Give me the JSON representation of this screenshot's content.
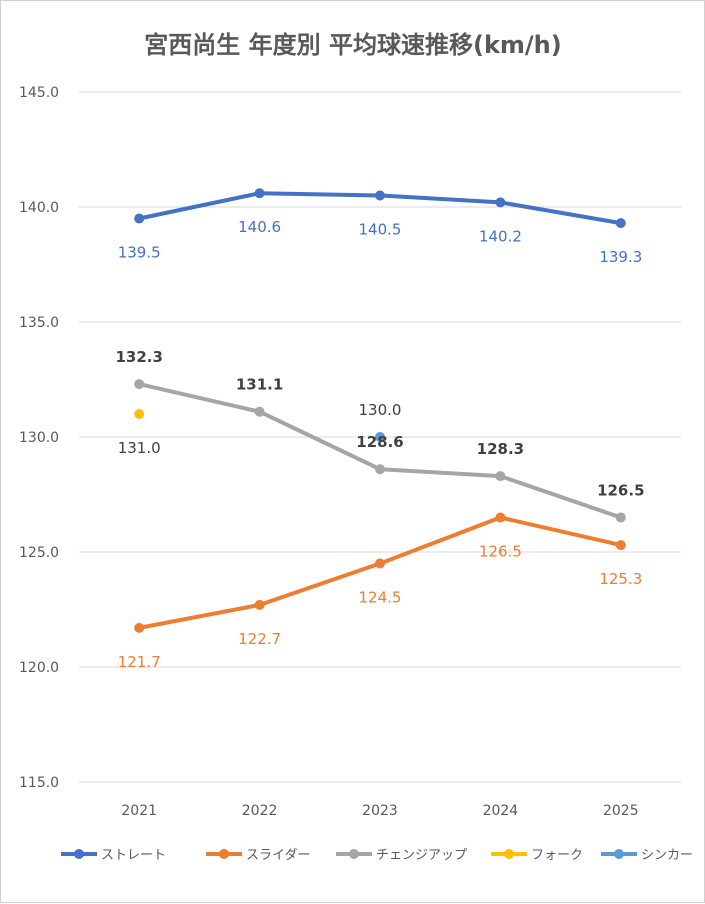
{
  "chart_data": {
    "type": "line",
    "title": "宮西尚生 年度別 平均球速推移(km/h)",
    "xlabel": "",
    "ylabel": "",
    "categories": [
      "2021",
      "2022",
      "2023",
      "2024",
      "2025"
    ],
    "ylim": [
      115.0,
      145.0
    ],
    "yticks": [
      "115.0",
      "120.0",
      "125.0",
      "130.0",
      "135.0",
      "140.0",
      "145.0"
    ],
    "grid": true,
    "legend": "bottom",
    "series": [
      {
        "name": "ストレート",
        "color": "#4472C4",
        "values": [
          139.5,
          140.6,
          140.5,
          140.2,
          139.3
        ],
        "labels": [
          "139.5",
          "140.6",
          "140.5",
          "140.2",
          "139.3"
        ],
        "label_pos": "below",
        "label_bold": false
      },
      {
        "name": "スライダー",
        "color": "#ED7D31",
        "values": [
          121.7,
          122.7,
          124.5,
          126.5,
          125.3
        ],
        "labels": [
          "121.7",
          "122.7",
          "124.5",
          "126.5",
          "125.3"
        ],
        "label_pos": "below",
        "label_bold": false
      },
      {
        "name": "チェンジアップ",
        "color": "#A5A5A5",
        "values": [
          132.3,
          131.1,
          128.6,
          128.3,
          126.5
        ],
        "labels": [
          "132.3",
          "131.1",
          "128.6",
          "128.3",
          "126.5"
        ],
        "label_pos": "above",
        "label_bold": true
      },
      {
        "name": "フォーク",
        "color": "#FFC000",
        "values": [
          131.0,
          null,
          null,
          null,
          null
        ],
        "labels": [
          "131.0",
          "",
          "",
          "",
          ""
        ],
        "label_pos": "below",
        "label_bold": false
      },
      {
        "name": "シンカー",
        "color": "#5B9BD5",
        "values": [
          null,
          null,
          130.0,
          null,
          null
        ],
        "labels": [
          "",
          "",
          "130.0",
          "",
          ""
        ],
        "label_pos": "above",
        "label_bold": false
      }
    ]
  }
}
